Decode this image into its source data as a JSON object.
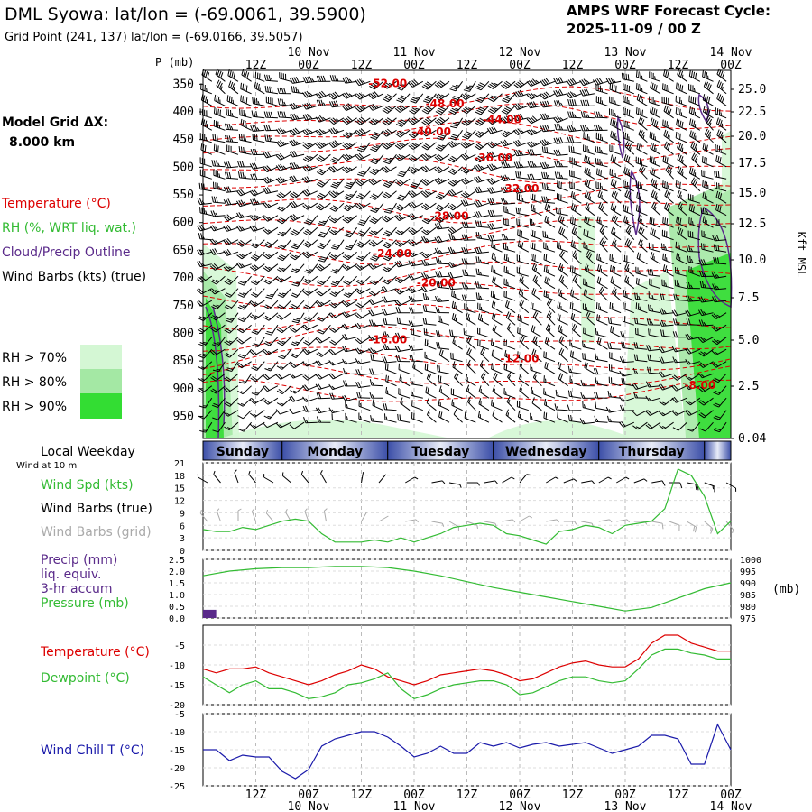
{
  "header": {
    "title": "DML Syowa:  lat/lon = (-69.0061, 39.5900)",
    "subtitle": "Grid Point (241, 137) lat/lon = (-69.0166, 39.5057)",
    "cycle_line1": "AMPS WRF Forecast Cycle:",
    "cycle_line2": "2025-11-09 / 00  Z"
  },
  "colors": {
    "temperature": "#dd0000",
    "rh": "#33bb33",
    "cloud": "#5a2a8a",
    "barb": "#000000",
    "grid_barb": "#aaaaaa",
    "wind_chill": "#1a1aaa",
    "rh70": "#d4f7d4",
    "rh80": "#a4e8a4",
    "rh90": "#33dd33",
    "day_band": "#5a6cb8"
  },
  "legend": {
    "model_grid_label": "Model Grid ΔX:",
    "model_grid_value": "8.000 km",
    "temperature": "Temperature (°C)",
    "rh": "RH (%, WRT liq. wat.)",
    "cloud": "Cloud/Precip Outline",
    "wind_barbs": "Wind Barbs (kts) (true)",
    "rh70": "RH > 70%",
    "rh80": "RH > 80%",
    "rh90": "RH > 90%"
  },
  "time_axis": {
    "top_labels": [
      {
        "hour": 12,
        "text": "12Z"
      },
      {
        "hour": 24,
        "text": "00Z",
        "date": "10 Nov"
      },
      {
        "hour": 36,
        "text": "12Z"
      },
      {
        "hour": 48,
        "text": "00Z",
        "date": "11 Nov"
      },
      {
        "hour": 60,
        "text": "12Z"
      },
      {
        "hour": 72,
        "text": "00Z",
        "date": "12 Nov"
      },
      {
        "hour": 84,
        "text": "12Z"
      },
      {
        "hour": 96,
        "text": "00Z",
        "date": "13 Nov"
      },
      {
        "hour": 108,
        "text": "12Z"
      },
      {
        "hour": 120,
        "text": "00Z",
        "date": "14 Nov"
      }
    ],
    "start_hour": 0,
    "end_hour": 120
  },
  "days": [
    {
      "name": "Sunday",
      "start": 0,
      "end": 18
    },
    {
      "name": "Monday",
      "start": 18,
      "end": 42
    },
    {
      "name": "Tuesday",
      "start": 42,
      "end": 66
    },
    {
      "name": "Wednesday",
      "start": 66,
      "end": 90
    },
    {
      "name": "Thursday",
      "start": 90,
      "end": 114
    },
    {
      "name": "",
      "start": 114,
      "end": 120
    }
  ],
  "local_weekday_label": "Local Weekday",
  "wind_at_label": "Wind at 10 m",
  "chart_data": [
    {
      "type": "heatmap",
      "name": "cross-section",
      "p_axis_title": "P (mb)",
      "p_levels": [
        350,
        400,
        450,
        500,
        550,
        600,
        650,
        700,
        750,
        800,
        850,
        900,
        950
      ],
      "p_range": [
        325,
        990
      ],
      "height_axis_title": "Kft MSL",
      "height_ticks": [
        "25.0",
        "22.5",
        "20.0",
        "17.5",
        "15.0",
        "12.5",
        "10.0",
        "7.5",
        "5.0",
        "2.5",
        "0.04"
      ],
      "temperature_labels": [
        {
          "text": "-52.00",
          "hour": 42,
          "p": 355
        },
        {
          "text": "-48.00",
          "hour": 55,
          "p": 392
        },
        {
          "text": "-44.00",
          "hour": 68,
          "p": 420
        },
        {
          "text": "-40.00",
          "hour": 52,
          "p": 442
        },
        {
          "text": "-36.00",
          "hour": 66,
          "p": 490
        },
        {
          "text": "-32.00",
          "hour": 72,
          "p": 545
        },
        {
          "text": "-28.00",
          "hour": 56,
          "p": 595
        },
        {
          "text": "-24.00",
          "hour": 43,
          "p": 662
        },
        {
          "text": "-20.00",
          "hour": 53,
          "p": 715
        },
        {
          "text": "-16.00",
          "hour": 42,
          "p": 818
        },
        {
          "text": "-12.00",
          "hour": 72,
          "p": 852
        },
        {
          "text": "-8.00",
          "hour": 113,
          "p": 900
        }
      ]
    },
    {
      "type": "line",
      "name": "wind",
      "ylabel_lines": [
        "Wind Spd (kts)",
        "Wind Barbs (true)",
        "Wind Barbs (grid)"
      ],
      "ylim": [
        0,
        21
      ],
      "yticks": [
        0,
        3,
        6,
        9,
        12,
        15,
        18,
        21
      ],
      "x": [
        0,
        3,
        6,
        9,
        12,
        15,
        18,
        21,
        24,
        27,
        30,
        33,
        36,
        39,
        42,
        45,
        48,
        51,
        54,
        57,
        60,
        63,
        66,
        69,
        72,
        75,
        78,
        81,
        84,
        87,
        90,
        93,
        96,
        99,
        102,
        105,
        108,
        111,
        114,
        117,
        120
      ],
      "values": [
        5,
        4.5,
        4.5,
        5.5,
        5,
        6,
        7,
        7.5,
        7,
        4,
        2,
        2,
        2,
        2.5,
        2,
        3,
        2,
        3,
        4,
        5.5,
        6,
        6.5,
        6,
        4,
        3.5,
        2.5,
        1.5,
        4.5,
        5,
        6,
        5.5,
        4,
        6,
        6.5,
        7,
        10,
        19.5,
        18,
        13,
        4,
        7
      ]
    },
    {
      "type": "line",
      "name": "precip-pressure",
      "ylabel_lines": [
        "Precip (mm)",
        "liq. equiv.",
        "3-hr accum",
        "Pressure (mb)"
      ],
      "precip_ylim": [
        0,
        2.5
      ],
      "precip_ticks": [
        "0.0",
        "0.5",
        "1.0",
        "1.5",
        "2.0",
        "2.5"
      ],
      "pressure_ylim": [
        975,
        1000
      ],
      "pressure_ticks": [
        975,
        980,
        985,
        990,
        995,
        1000
      ],
      "pressure_unit": "(mb)",
      "precip": [
        {
          "hour": 1.5,
          "value": 0.35
        }
      ],
      "x": [
        0,
        6,
        12,
        18,
        24,
        30,
        36,
        42,
        48,
        54,
        60,
        66,
        72,
        78,
        84,
        90,
        96,
        102,
        108,
        114,
        120
      ],
      "pressure": [
        993,
        995,
        996,
        996.5,
        996.5,
        997,
        997,
        996.5,
        995,
        993,
        990.5,
        988,
        986,
        984,
        982,
        980,
        978,
        979.5,
        983.5,
        987.5,
        990
      ]
    },
    {
      "type": "line",
      "name": "temperature",
      "ylabel_lines": [
        "Temperature (°C)",
        "Dewpoint (°C)"
      ],
      "ylim": [
        -20,
        0
      ],
      "yticks": [
        -20,
        -15,
        -10,
        -5
      ],
      "x": [
        0,
        3,
        6,
        9,
        12,
        15,
        18,
        21,
        24,
        27,
        30,
        33,
        36,
        39,
        42,
        45,
        48,
        51,
        54,
        57,
        60,
        63,
        66,
        69,
        72,
        75,
        78,
        81,
        84,
        87,
        90,
        93,
        96,
        99,
        102,
        105,
        108,
        111,
        114,
        117,
        120
      ],
      "temperature": [
        -11,
        -12,
        -11,
        -11,
        -10.5,
        -12,
        -13,
        -14,
        -15,
        -14,
        -12.5,
        -11.5,
        -10,
        -11,
        -13,
        -14,
        -15,
        -14,
        -12.5,
        -12,
        -11.5,
        -11,
        -11.5,
        -12.5,
        -14,
        -13.5,
        -12,
        -10.5,
        -9.5,
        -9,
        -10,
        -10.5,
        -10.5,
        -8.5,
        -4.5,
        -2.5,
        -2.5,
        -4.5,
        -5.5,
        -6.5,
        -6.5
      ],
      "dewpoint": [
        -13,
        -15,
        -17,
        -15,
        -14,
        -16,
        -16,
        -17,
        -18.5,
        -18,
        -17,
        -15,
        -14.5,
        -13.5,
        -12,
        -16,
        -18.5,
        -17.5,
        -16,
        -15,
        -14.5,
        -14,
        -14,
        -15,
        -17.5,
        -17,
        -15.5,
        -14,
        -13,
        -13,
        -14,
        -14.5,
        -14,
        -11,
        -7.5,
        -6,
        -6,
        -7,
        -7.5,
        -8.5,
        -8.5
      ]
    },
    {
      "type": "line",
      "name": "wind-chill",
      "ylabel_lines": [
        "Wind Chill T (°C)"
      ],
      "ylim": [
        -25,
        -5
      ],
      "yticks": [
        -25,
        -20,
        -15,
        -10,
        -5
      ],
      "x": [
        0,
        3,
        6,
        9,
        12,
        15,
        18,
        21,
        24,
        27,
        30,
        33,
        36,
        39,
        42,
        45,
        48,
        51,
        54,
        57,
        60,
        63,
        66,
        69,
        72,
        75,
        78,
        81,
        84,
        87,
        90,
        93,
        96,
        99,
        102,
        105,
        108,
        111,
        114,
        117,
        120
      ],
      "values": [
        -15,
        -15,
        -18,
        -16.5,
        -17,
        -17,
        -21,
        -23,
        -20.5,
        -14,
        -12,
        -11,
        -10,
        -10,
        -11.5,
        -14,
        -17,
        -16,
        -14,
        -16,
        -16,
        -13,
        -14,
        -13,
        -14.5,
        -13.5,
        -13,
        -14,
        -13.5,
        -13,
        -14.5,
        -16,
        -15,
        -14,
        -11,
        -11,
        -12,
        -19,
        -19,
        -8,
        -15
      ]
    }
  ],
  "wind_barbs": {
    "surface": [
      {
        "hour": 1,
        "dir": 300,
        "spd": 5
      },
      {
        "hour": 4,
        "dir": 320,
        "spd": 5
      },
      {
        "hour": 8,
        "dir": 340,
        "spd": 5
      },
      {
        "hour": 12,
        "dir": 320,
        "spd": 5
      },
      {
        "hour": 16,
        "dir": 300,
        "spd": 7
      },
      {
        "hour": 20,
        "dir": 310,
        "spd": 7
      },
      {
        "hour": 24,
        "dir": 320,
        "spd": 7
      },
      {
        "hour": 28,
        "dir": 330,
        "spd": 5
      },
      {
        "hour": 36,
        "dir": 10,
        "spd": 2
      },
      {
        "hour": 40,
        "dir": 40,
        "spd": 2
      },
      {
        "hour": 46,
        "dir": 60,
        "spd": 3
      },
      {
        "hour": 52,
        "dir": 80,
        "spd": 4
      },
      {
        "hour": 56,
        "dir": 100,
        "spd": 5
      },
      {
        "hour": 60,
        "dir": 90,
        "spd": 6
      },
      {
        "hour": 64,
        "dir": 80,
        "spd": 6
      },
      {
        "hour": 68,
        "dir": 60,
        "spd": 5
      },
      {
        "hour": 72,
        "dir": 40,
        "spd": 3
      },
      {
        "hour": 78,
        "dir": 60,
        "spd": 4
      },
      {
        "hour": 82,
        "dir": 70,
        "spd": 5
      },
      {
        "hour": 86,
        "dir": 80,
        "spd": 6
      },
      {
        "hour": 90,
        "dir": 60,
        "spd": 5
      },
      {
        "hour": 94,
        "dir": 60,
        "spd": 6
      },
      {
        "hour": 98,
        "dir": 70,
        "spd": 7
      },
      {
        "hour": 102,
        "dir": 80,
        "spd": 8
      },
      {
        "hour": 106,
        "dir": 90,
        "spd": 10
      },
      {
        "hour": 110,
        "dir": 100,
        "spd": 18
      },
      {
        "hour": 114,
        "dir": 110,
        "spd": 13
      },
      {
        "hour": 119,
        "dir": 120,
        "spd": 7
      }
    ]
  }
}
